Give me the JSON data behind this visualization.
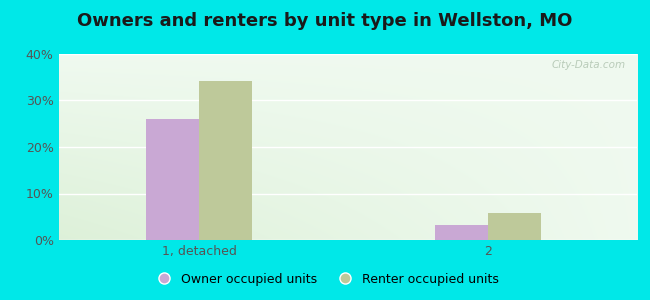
{
  "title": "Owners and renters by unit type in Wellston, MO",
  "categories": [
    "1, detached",
    "2"
  ],
  "owner_values": [
    26.0,
    3.2
  ],
  "renter_values": [
    34.2,
    5.8
  ],
  "owner_color": "#c9a8d4",
  "renter_color": "#bec99a",
  "background_outer": "#00e8e8",
  "ylim": [
    0,
    40
  ],
  "yticks": [
    0,
    10,
    20,
    30,
    40
  ],
  "ytick_labels": [
    "0%",
    "10%",
    "20%",
    "30%",
    "40%"
  ],
  "legend_owner": "Owner occupied units",
  "legend_renter": "Renter occupied units",
  "title_fontsize": 13,
  "tick_fontsize": 9,
  "legend_fontsize": 9,
  "bar_width": 0.32,
  "watermark": "City-Data.com"
}
